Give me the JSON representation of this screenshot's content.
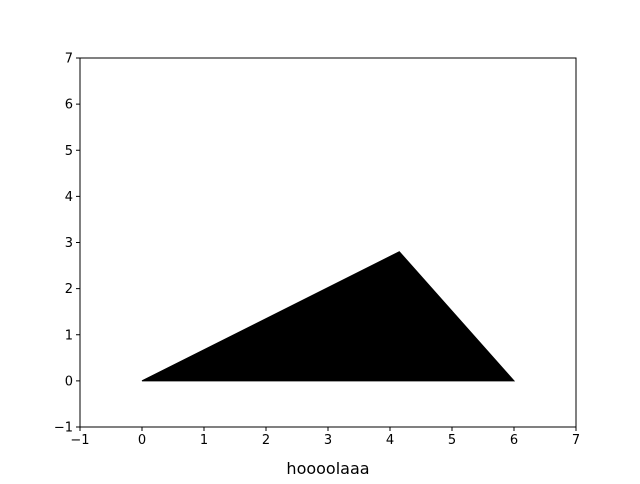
{
  "chart_data": {
    "type": "area",
    "title": "",
    "xlabel": "hoooolaaa",
    "ylabel": "",
    "xlim": [
      -1,
      7
    ],
    "ylim": [
      -1,
      7
    ],
    "xticks": [
      -1,
      0,
      1,
      2,
      3,
      4,
      5,
      6,
      7
    ],
    "yticks": [
      -1,
      0,
      1,
      2,
      3,
      4,
      5,
      6,
      7
    ],
    "xtick_labels": [
      "−1",
      "0",
      "1",
      "2",
      "3",
      "4",
      "5",
      "6",
      "7"
    ],
    "ytick_labels": [
      "−1",
      "0",
      "1",
      "2",
      "3",
      "4",
      "5",
      "6",
      "7"
    ],
    "grid": false,
    "series": [
      {
        "shape": "filled-polygon",
        "color": "#000000",
        "points": [
          [
            0,
            0
          ],
          [
            4.15,
            2.8
          ],
          [
            6,
            0
          ]
        ]
      }
    ]
  }
}
